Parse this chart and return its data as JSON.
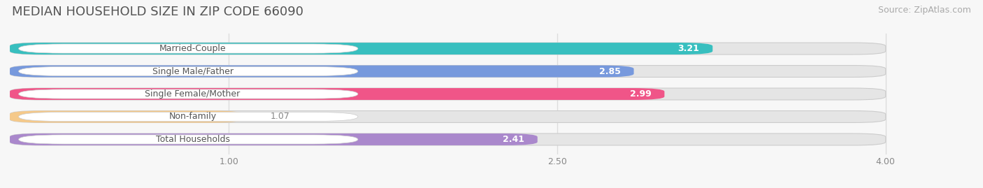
{
  "title": "MEDIAN HOUSEHOLD SIZE IN ZIP CODE 66090",
  "source": "Source: ZipAtlas.com",
  "categories": [
    "Married-Couple",
    "Single Male/Father",
    "Single Female/Mother",
    "Non-family",
    "Total Households"
  ],
  "values": [
    3.21,
    2.85,
    2.99,
    1.07,
    2.41
  ],
  "bar_colors": [
    "#38bfbf",
    "#7799dd",
    "#f05588",
    "#f5c98a",
    "#aa88cc"
  ],
  "value_colors": [
    "#38bfbf",
    "#7799dd",
    "#f05588",
    "#888888",
    "#aa88cc"
  ],
  "xlim": [
    0,
    4.4
  ],
  "xmin": 0,
  "xmax": 4.0,
  "xticks": [
    1.0,
    2.5,
    4.0
  ],
  "xtick_labels": [
    "1.00",
    "2.50",
    "4.00"
  ],
  "label_text_color": "#555555",
  "title_color": "#555555",
  "source_color": "#aaaaaa",
  "title_fontsize": 13,
  "source_fontsize": 9,
  "label_fontsize": 9,
  "value_fontsize": 9,
  "bar_height": 0.52,
  "background_color": "#f7f7f7",
  "bar_background_color": "#e5e5e5",
  "pill_bg_color": "#ffffff",
  "grid_color": "#dddddd"
}
